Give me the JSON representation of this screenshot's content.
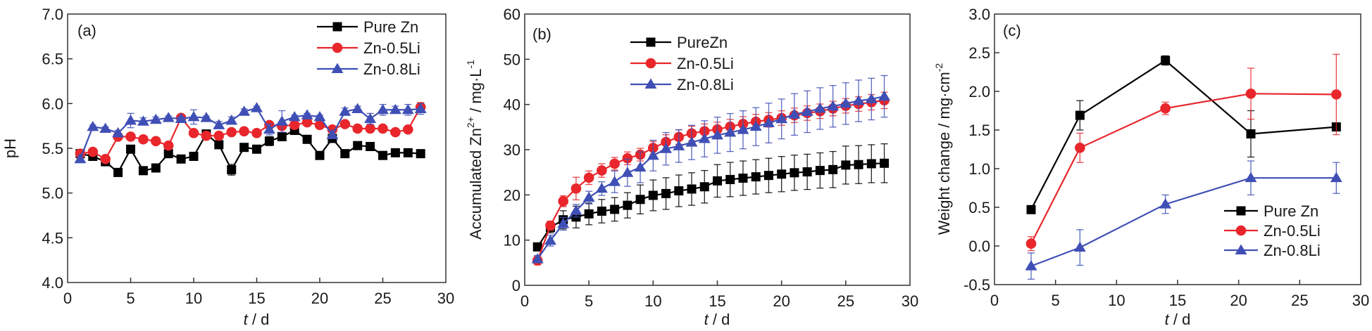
{
  "chart_data": [
    {
      "type": "line",
      "panel_label": "(a)",
      "title": "",
      "xlabel": "t / d",
      "xlabel_italic": "t",
      "xlabel_rest": " / d",
      "ylabel": "pH",
      "xlim": [
        0,
        30
      ],
      "ylim": [
        4.0,
        7.0
      ],
      "xticks": [
        0,
        5,
        10,
        15,
        20,
        25,
        30
      ],
      "xtick_labels": [
        "0",
        "5",
        "10",
        "15",
        "20",
        "25",
        "30"
      ],
      "yticks": [
        4.0,
        4.5,
        5.0,
        5.5,
        6.0,
        6.5,
        7.0
      ],
      "ytick_labels": [
        "4.0",
        "4.5",
        "5.0",
        "5.5",
        "6.0",
        "6.5",
        "7.0"
      ],
      "grid": false,
      "legend_position": "top-right",
      "x": [
        1,
        2,
        3,
        4,
        5,
        6,
        7,
        8,
        9,
        10,
        11,
        12,
        13,
        14,
        15,
        16,
        17,
        18,
        19,
        20,
        21,
        22,
        23,
        24,
        25,
        26,
        27,
        28
      ],
      "series": [
        {
          "name": "Pure Zn",
          "color": "#000000",
          "marker": "square",
          "values": [
            5.44,
            5.41,
            5.35,
            5.23,
            5.49,
            5.25,
            5.28,
            5.44,
            5.38,
            5.41,
            5.66,
            5.54,
            5.26,
            5.51,
            5.49,
            5.58,
            5.63,
            5.7,
            5.6,
            5.42,
            5.61,
            5.44,
            5.53,
            5.52,
            5.42,
            5.45,
            5.45,
            5.44
          ],
          "errors": [
            0.02,
            0.02,
            0.02,
            0.02,
            0.02,
            0.02,
            0.02,
            0.02,
            0.02,
            0.02,
            0.02,
            0.02,
            0.06,
            0.02,
            0.02,
            0.05,
            0.02,
            0.02,
            0.02,
            0.02,
            0.02,
            0.02,
            0.02,
            0.02,
            0.02,
            0.02,
            0.02,
            0.02
          ]
        },
        {
          "name": "Zn-0.5Li",
          "color": "#e8262b",
          "marker": "circle",
          "values": [
            5.44,
            5.46,
            5.38,
            5.63,
            5.63,
            5.6,
            5.58,
            5.53,
            5.84,
            5.67,
            5.64,
            5.64,
            5.68,
            5.69,
            5.67,
            5.76,
            5.75,
            5.76,
            5.79,
            5.76,
            5.71,
            5.77,
            5.72,
            5.72,
            5.72,
            5.68,
            5.71,
            5.96
          ],
          "errors": [
            0.02,
            0.02,
            0.02,
            0.03,
            0.02,
            0.02,
            0.02,
            0.02,
            0.02,
            0.02,
            0.02,
            0.02,
            0.02,
            0.02,
            0.02,
            0.02,
            0.02,
            0.02,
            0.02,
            0.02,
            0.02,
            0.02,
            0.02,
            0.02,
            0.02,
            0.02,
            0.02,
            0.05
          ]
        },
        {
          "name": "Zn-0.8Li",
          "color": "#3f4fb5",
          "marker": "triangle",
          "values": [
            5.38,
            5.74,
            5.72,
            5.67,
            5.81,
            5.8,
            5.82,
            5.84,
            5.83,
            5.85,
            5.84,
            5.76,
            5.81,
            5.91,
            5.95,
            5.71,
            5.8,
            5.85,
            5.87,
            5.85,
            5.65,
            5.91,
            5.94,
            5.83,
            5.93,
            5.93,
            5.93,
            5.94
          ],
          "errors": [
            0.04,
            0.02,
            0.02,
            0.03,
            0.08,
            0.04,
            0.03,
            0.02,
            0.02,
            0.08,
            0.02,
            0.04,
            0.04,
            0.03,
            0.02,
            0.06,
            0.12,
            0.02,
            0.02,
            0.02,
            0.04,
            0.04,
            0.03,
            0.06,
            0.06,
            0.04,
            0.06,
            0.06
          ]
        }
      ]
    },
    {
      "type": "line",
      "panel_label": "(b)",
      "title": "",
      "xlabel": "t / d",
      "xlabel_italic": "t",
      "xlabel_rest": " / d",
      "ylabel": "Accumulated Zn2+ / mg·L-1",
      "ylabel_main": "Accumulated Zn",
      "ylabel_sup1": "2+",
      "ylabel_mid": " / mg·L",
      "ylabel_sup2": "-1",
      "xlim": [
        0,
        30
      ],
      "ylim": [
        0,
        60
      ],
      "xticks": [
        0,
        5,
        10,
        15,
        20,
        25,
        30
      ],
      "xtick_labels": [
        "0",
        "5",
        "10",
        "15",
        "20",
        "25",
        "30"
      ],
      "yticks": [
        0,
        10,
        20,
        30,
        40,
        50,
        60
      ],
      "ytick_labels": [
        "0",
        "10",
        "20",
        "30",
        "40",
        "50",
        "60"
      ],
      "grid": false,
      "legend_position": "top-left",
      "x": [
        1,
        2,
        3,
        4,
        5,
        6,
        7,
        8,
        9,
        10,
        11,
        12,
        13,
        14,
        15,
        16,
        17,
        18,
        19,
        20,
        21,
        22,
        23,
        24,
        25,
        26,
        27,
        28
      ],
      "series": [
        {
          "name": "PureZn",
          "color": "#000000",
          "marker": "square",
          "values": [
            8.5,
            12.8,
            14.5,
            15.1,
            15.8,
            16.4,
            16.8,
            17.7,
            19.0,
            19.9,
            20.3,
            20.9,
            21.3,
            21.8,
            23.1,
            23.4,
            23.7,
            24.0,
            24.3,
            24.6,
            24.9,
            25.1,
            25.4,
            25.6,
            26.6,
            26.7,
            26.9,
            27.0
          ],
          "errors": [
            0.5,
            1.2,
            2.0,
            2.4,
            2.4,
            2.6,
            2.6,
            2.8,
            3.2,
            3.4,
            3.5,
            3.5,
            3.6,
            3.6,
            3.6,
            3.8,
            3.8,
            3.8,
            3.8,
            3.9,
            3.9,
            3.9,
            3.9,
            4.0,
            4.2,
            4.2,
            4.2,
            4.3
          ]
        },
        {
          "name": "Zn-0.5Li",
          "color": "#e8262b",
          "marker": "circle",
          "values": [
            5.5,
            13.2,
            18.6,
            21.4,
            23.8,
            25.4,
            26.9,
            28.1,
            28.9,
            30.4,
            31.7,
            32.8,
            33.6,
            34.1,
            34.5,
            35.1,
            35.7,
            36.2,
            36.6,
            37.0,
            37.6,
            38.1,
            38.5,
            39.1,
            39.7,
            40.1,
            40.5,
            40.9
          ],
          "errors": [
            1.0,
            1.0,
            1.2,
            2.5,
            1.5,
            1.5,
            1.4,
            1.4,
            1.4,
            1.4,
            1.6,
            1.6,
            1.6,
            1.6,
            1.6,
            1.6,
            1.6,
            1.6,
            1.6,
            1.6,
            1.6,
            1.6,
            1.6,
            1.6,
            1.6,
            1.6,
            1.7,
            1.8
          ]
        },
        {
          "name": "Zn-0.8Li",
          "color": "#3f4fb5",
          "marker": "triangle",
          "values": [
            5.8,
            9.9,
            13.6,
            16.5,
            19.4,
            21.4,
            22.9,
            24.9,
            26.1,
            28.7,
            30.2,
            30.8,
            31.6,
            32.4,
            33.2,
            33.8,
            34.4,
            35.1,
            35.9,
            36.8,
            37.8,
            38.4,
            39.1,
            39.6,
            40.2,
            40.8,
            41.2,
            41.8
          ],
          "errors": [
            0.8,
            1.2,
            1.4,
            1.4,
            1.4,
            1.5,
            2.4,
            3.0,
            3.4,
            3.4,
            3.6,
            3.6,
            3.8,
            4.0,
            4.0,
            4.2,
            4.2,
            4.2,
            4.4,
            4.4,
            4.6,
            4.6,
            4.6,
            4.6,
            4.6,
            4.6,
            4.6,
            4.6
          ]
        }
      ]
    },
    {
      "type": "line",
      "panel_label": "(c)",
      "title": "",
      "xlabel": "t / d",
      "xlabel_italic": "t",
      "xlabel_rest": " / d",
      "ylabel": "Weight change / mg·cm-2",
      "ylabel_main": "Weight change / mg·cm",
      "ylabel_sup": "-2",
      "xlim": [
        0,
        30
      ],
      "ylim": [
        -0.5,
        3.0
      ],
      "xticks": [
        0,
        5,
        10,
        15,
        20,
        25,
        30
      ],
      "xtick_labels": [
        "0",
        "5",
        "10",
        "15",
        "20",
        "25",
        "30"
      ],
      "yticks": [
        -0.5,
        0.0,
        0.5,
        1.0,
        1.5,
        2.0,
        2.5,
        3.0
      ],
      "ytick_labels": [
        "-0.5",
        "0.0",
        "0.5",
        "1.0",
        "1.5",
        "2.0",
        "2.5",
        "3.0"
      ],
      "grid": false,
      "legend_position": "bottom-right",
      "x": [
        3,
        7,
        14,
        21,
        28
      ],
      "series": [
        {
          "name": "Pure Zn",
          "color": "#000000",
          "marker": "square",
          "values": [
            0.47,
            1.69,
            2.4,
            1.45,
            1.54
          ],
          "errors": [
            0.02,
            0.19,
            0.06,
            0.3,
            0.02
          ]
        },
        {
          "name": "Zn-0.5Li",
          "color": "#e8262b",
          "marker": "circle",
          "values": [
            0.03,
            1.27,
            1.78,
            1.97,
            1.96
          ],
          "errors": [
            0.09,
            0.19,
            0.08,
            0.33,
            0.52
          ]
        },
        {
          "name": "Zn-0.8Li",
          "color": "#3f4fb5",
          "marker": "triangle",
          "values": [
            -0.26,
            -0.02,
            0.54,
            0.88,
            0.88
          ],
          "errors": [
            0.17,
            0.23,
            0.12,
            0.22,
            0.2
          ]
        }
      ]
    }
  ]
}
